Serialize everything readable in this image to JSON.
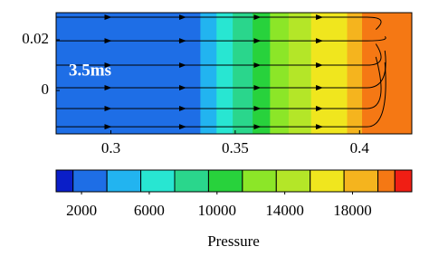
{
  "chart_data": {
    "type": "contour",
    "annotation": "3.5ms",
    "xlim": [
      0.278,
      0.421
    ],
    "ylim": [
      -0.0171,
      0.0307
    ],
    "xticks": [
      0.3,
      0.35,
      0.4
    ],
    "yticks": [
      0,
      0.02
    ],
    "contour_x": [
      0.278,
      0.336,
      0.3425,
      0.349,
      0.357,
      0.364,
      0.3715,
      0.3805,
      0.395,
      0.401,
      0.421
    ],
    "contour_pressure": [
      2500,
      4500,
      6500,
      8500,
      10500,
      12500,
      14500,
      16500,
      18500,
      20000
    ],
    "streamlines_y": [
      0.0289,
      0.0196,
      0.01,
      0.0011,
      -0.0071,
      -0.0143
    ],
    "colorbar": {
      "label": "Pressure",
      "clim": [
        500,
        21500
      ],
      "levels": [
        500,
        1500,
        3500,
        5500,
        7500,
        9500,
        11500,
        13500,
        15500,
        17500,
        19500,
        20500,
        21500
      ],
      "colors": [
        "#0a1ec8",
        "#1e6ee6",
        "#22b4f0",
        "#28e6d2",
        "#2ad68c",
        "#28d23c",
        "#8ce628",
        "#b4e628",
        "#f0e61e",
        "#f5b41e",
        "#f57814",
        "#f01e14"
      ],
      "ticks": [
        2000,
        6000,
        10000,
        14000,
        18000
      ]
    }
  }
}
